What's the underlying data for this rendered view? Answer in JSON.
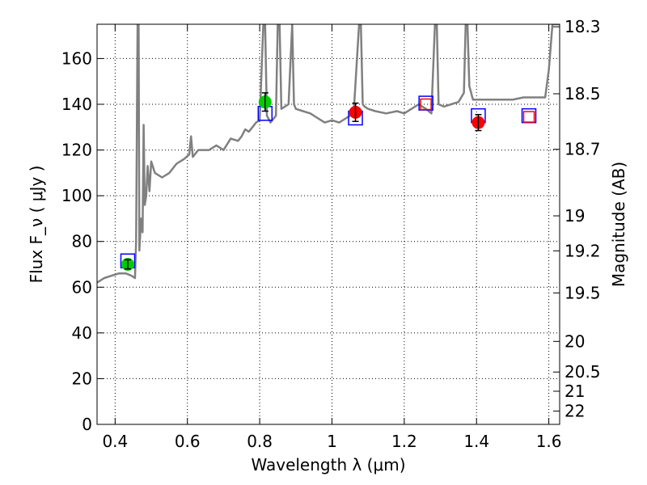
{
  "chart_data": {
    "type": "scatter",
    "title": "",
    "xlabel": "Wavelength  λ (μm)",
    "ylabel": "Flux  F_ν  ( μJy )",
    "y2label": "Magnitude (AB)",
    "xlim": [
      0.35,
      1.63
    ],
    "ylim": [
      0,
      175
    ],
    "grid": true,
    "x_ticks": [
      0.4,
      0.6,
      0.8,
      1.0,
      1.2,
      1.4,
      1.6
    ],
    "x_tick_labels": [
      "0.4",
      "0.6",
      "0.8",
      "1",
      "1.2",
      "1.4",
      "1.6"
    ],
    "y_ticks": [
      0,
      20,
      40,
      60,
      80,
      100,
      120,
      140,
      160
    ],
    "y_tick_labels": [
      "0",
      "20",
      "40",
      "60",
      "80",
      "100",
      "120",
      "140",
      "160"
    ],
    "y2_ticks": [
      {
        "label": "18.3",
        "flux": 173.9
      },
      {
        "label": "18.5",
        "flux": 144.6
      },
      {
        "label": "18.7",
        "flux": 120.3
      },
      {
        "label": "19",
        "flux": 91.2
      },
      {
        "label": "19.2",
        "flux": 75.9
      },
      {
        "label": "19.5",
        "flux": 57.5
      },
      {
        "label": "20",
        "flux": 36.3
      },
      {
        "label": "20.5",
        "flux": 22.9
      },
      {
        "label": "21",
        "flux": 14.5
      },
      {
        "label": "22",
        "flux": 5.8
      }
    ],
    "series": [
      {
        "kind": "line",
        "color": "#808080",
        "points": [
          [
            0.35,
            62
          ],
          [
            0.37,
            64
          ],
          [
            0.39,
            65
          ],
          [
            0.41,
            66
          ],
          [
            0.43,
            66
          ],
          [
            0.445,
            65
          ],
          [
            0.455,
            64
          ],
          [
            0.458,
            80
          ],
          [
            0.462,
            175
          ],
          [
            0.465,
            175
          ],
          [
            0.467,
            76
          ],
          [
            0.472,
            90
          ],
          [
            0.476,
            84
          ],
          [
            0.479,
            131
          ],
          [
            0.482,
            96
          ],
          [
            0.486,
            100
          ],
          [
            0.49,
            113
          ],
          [
            0.495,
            102
          ],
          [
            0.5,
            115
          ],
          [
            0.51,
            110
          ],
          [
            0.53,
            108
          ],
          [
            0.55,
            110
          ],
          [
            0.57,
            114
          ],
          [
            0.59,
            116
          ],
          [
            0.605,
            118
          ],
          [
            0.61,
            126
          ],
          [
            0.615,
            117
          ],
          [
            0.63,
            120
          ],
          [
            0.64,
            120
          ],
          [
            0.66,
            120
          ],
          [
            0.68,
            122
          ],
          [
            0.7,
            120
          ],
          [
            0.72,
            125
          ],
          [
            0.74,
            124
          ],
          [
            0.75,
            126
          ],
          [
            0.76,
            129
          ],
          [
            0.77,
            128
          ],
          [
            0.78,
            130
          ],
          [
            0.79,
            132
          ],
          [
            0.8,
            133
          ],
          [
            0.81,
            175
          ],
          [
            0.815,
            175
          ],
          [
            0.82,
            135
          ],
          [
            0.83,
            132
          ],
          [
            0.845,
            135
          ],
          [
            0.85,
            175
          ],
          [
            0.855,
            175
          ],
          [
            0.86,
            138
          ],
          [
            0.88,
            140
          ],
          [
            0.89,
            175
          ],
          [
            0.895,
            140
          ],
          [
            0.9,
            138
          ],
          [
            0.92,
            137
          ],
          [
            0.94,
            136
          ],
          [
            0.96,
            134
          ],
          [
            0.98,
            132
          ],
          [
            1.0,
            133
          ],
          [
            1.02,
            132
          ],
          [
            1.04,
            134
          ],
          [
            1.06,
            136
          ],
          [
            1.075,
            175
          ],
          [
            1.08,
            175
          ],
          [
            1.085,
            140
          ],
          [
            1.09,
            139
          ],
          [
            1.1,
            138
          ],
          [
            1.12,
            137
          ],
          [
            1.15,
            136
          ],
          [
            1.18,
            137
          ],
          [
            1.2,
            136
          ],
          [
            1.22,
            138
          ],
          [
            1.24,
            140
          ],
          [
            1.26,
            138
          ],
          [
            1.275,
            136
          ],
          [
            1.285,
            175
          ],
          [
            1.29,
            175
          ],
          [
            1.295,
            140
          ],
          [
            1.31,
            139
          ],
          [
            1.33,
            140
          ],
          [
            1.35,
            141
          ],
          [
            1.365,
            145
          ],
          [
            1.37,
            175
          ],
          [
            1.375,
            175
          ],
          [
            1.38,
            148
          ],
          [
            1.39,
            142
          ],
          [
            1.41,
            142
          ],
          [
            1.43,
            142
          ],
          [
            1.45,
            142
          ],
          [
            1.47,
            142
          ],
          [
            1.5,
            142
          ],
          [
            1.53,
            143
          ],
          [
            1.55,
            143
          ],
          [
            1.57,
            143
          ],
          [
            1.59,
            143
          ],
          [
            1.6,
            155
          ],
          [
            1.61,
            175
          ],
          [
            1.63,
            175
          ]
        ]
      },
      {
        "kind": "points-with-errors",
        "color": "#00cc00",
        "points": [
          {
            "x": 0.435,
            "y": 70.0,
            "err": 2.0
          },
          {
            "x": 0.815,
            "y": 141.0,
            "err": 4.0
          }
        ]
      },
      {
        "kind": "points-with-errors",
        "color": "#ff0000",
        "points": [
          {
            "x": 1.065,
            "y": 136.5,
            "err": 4.0
          },
          {
            "x": 1.405,
            "y": 132.0,
            "err": 3.5
          }
        ]
      },
      {
        "kind": "squares",
        "color": "#0000ff",
        "points": [
          {
            "x": 0.435,
            "y": 71.5
          },
          {
            "x": 0.815,
            "y": 136.0
          },
          {
            "x": 1.065,
            "y": 134.0
          },
          {
            "x": 1.26,
            "y": 140.5
          },
          {
            "x": 1.405,
            "y": 135.0
          },
          {
            "x": 1.545,
            "y": 135.0
          }
        ]
      },
      {
        "kind": "squares",
        "color": "#ff0000",
        "points": [
          {
            "x": 1.26,
            "y": 140.0
          },
          {
            "x": 1.545,
            "y": 134.5
          }
        ]
      }
    ]
  }
}
